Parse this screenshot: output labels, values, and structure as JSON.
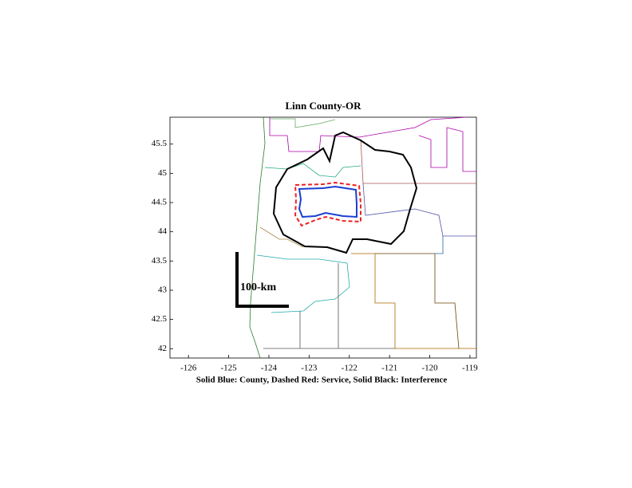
{
  "chart_data": {
    "type": "map",
    "title": "Linn County-OR",
    "xlabel": "Solid Blue: County, Dashed Red: Service, Solid Black: Interference",
    "scale_label": "100-km",
    "xlim": [
      -126.46,
      -118.84
    ],
    "ylim": [
      41.84,
      45.96
    ],
    "xticks": [
      -126,
      -125,
      -124,
      -123,
      -122,
      -121,
      -120,
      -119
    ],
    "yticks": [
      42,
      42.5,
      43,
      43.5,
      44,
      44.5,
      45,
      45.5
    ]
  }
}
